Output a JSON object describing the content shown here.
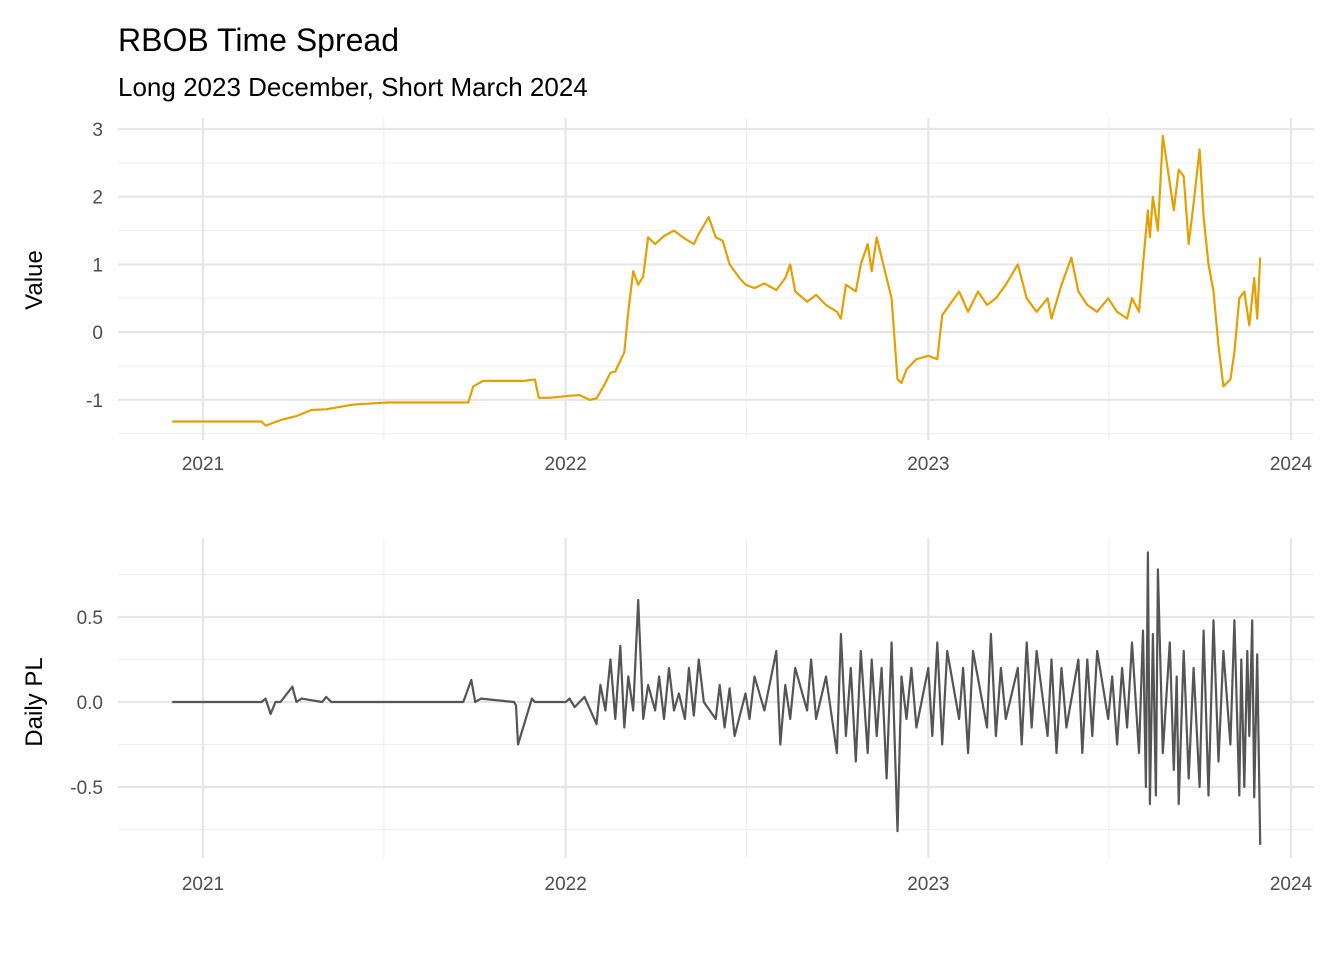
{
  "chart_data": [
    {
      "type": "line",
      "title": "RBOB Time Spread",
      "subtitle": "Long 2023 December, Short March 2024",
      "xlabel": "",
      "ylabel": "Value",
      "x_ticks": [
        "2021",
        "2022",
        "2023",
        "2024"
      ],
      "y_ticks": [
        "-1",
        "0",
        "1",
        "2",
        "3"
      ],
      "ylim": [
        -1.5,
        3.0
      ],
      "grid": true,
      "color": "#E69F00",
      "series": [
        {
          "x": [
            "2020-12-01",
            "2021-03-01",
            "2021-03-05",
            "2021-03-20",
            "2021-04-05",
            "2021-04-20",
            "2021-05-05",
            "2021-06-01",
            "2021-07-05",
            "2021-09-25",
            "2021-09-30",
            "2021-10-10",
            "2021-11-20",
            "2021-12-01",
            "2021-12-05",
            "2021-12-15",
            "2022-01-05",
            "2022-01-15",
            "2022-01-25",
            "2022-02-01",
            "2022-02-10",
            "2022-02-15",
            "2022-02-20",
            "2022-03-01",
            "2022-03-05",
            "2022-03-10",
            "2022-03-15",
            "2022-03-20",
            "2022-03-25",
            "2022-04-01",
            "2022-04-10",
            "2022-04-20",
            "2022-05-01",
            "2022-05-10",
            "2022-05-15",
            "2022-05-25",
            "2022-06-01",
            "2022-06-08",
            "2022-06-15",
            "2022-06-25",
            "2022-07-01",
            "2022-07-10",
            "2022-07-20",
            "2022-08-01",
            "2022-08-10",
            "2022-08-15",
            "2022-08-20",
            "2022-09-01",
            "2022-09-10",
            "2022-09-20",
            "2022-10-01",
            "2022-10-05",
            "2022-10-10",
            "2022-10-20",
            "2022-10-25",
            "2022-11-01",
            "2022-11-05",
            "2022-11-10",
            "2022-11-20",
            "2022-11-25",
            "2022-12-01",
            "2022-12-05",
            "2022-12-10",
            "2022-12-20",
            "2023-01-01",
            "2023-01-10",
            "2023-01-15",
            "2023-02-01",
            "2023-02-10",
            "2023-02-20",
            "2023-03-01",
            "2023-03-10",
            "2023-03-20",
            "2023-04-01",
            "2023-04-10",
            "2023-04-20",
            "2023-05-01",
            "2023-05-05",
            "2023-05-15",
            "2023-05-25",
            "2023-06-01",
            "2023-06-10",
            "2023-06-20",
            "2023-07-01",
            "2023-07-10",
            "2023-07-20",
            "2023-07-25",
            "2023-08-01",
            "2023-08-05",
            "2023-08-10",
            "2023-08-12",
            "2023-08-15",
            "2023-08-20",
            "2023-08-25",
            "2023-09-01",
            "2023-09-05",
            "2023-09-10",
            "2023-09-15",
            "2023-09-20",
            "2023-09-25",
            "2023-10-01",
            "2023-10-05",
            "2023-10-10",
            "2023-10-15",
            "2023-10-20",
            "2023-10-25",
            "2023-11-01",
            "2023-11-05",
            "2023-11-10",
            "2023-11-15",
            "2023-11-20",
            "2023-11-25",
            "2023-11-28",
            "2023-12-01"
          ],
          "y": [
            -1.32,
            -1.32,
            -1.38,
            -1.3,
            -1.24,
            -1.15,
            -1.14,
            -1.07,
            -1.04,
            -1.04,
            -0.8,
            -0.72,
            -0.72,
            -0.7,
            -0.97,
            -0.97,
            -0.94,
            -0.93,
            -1.0,
            -0.98,
            -0.75,
            -0.6,
            -0.58,
            -0.3,
            0.3,
            0.9,
            0.7,
            0.82,
            1.4,
            1.3,
            1.42,
            1.5,
            1.38,
            1.3,
            1.45,
            1.7,
            1.4,
            1.35,
            1.0,
            0.8,
            0.7,
            0.65,
            0.72,
            0.62,
            0.8,
            1.0,
            0.6,
            0.45,
            0.55,
            0.4,
            0.3,
            0.2,
            0.7,
            0.6,
            1.0,
            1.3,
            0.9,
            1.4,
            0.8,
            0.5,
            -0.7,
            -0.75,
            -0.55,
            -0.4,
            -0.35,
            -0.4,
            0.25,
            0.6,
            0.3,
            0.6,
            0.4,
            0.5,
            0.7,
            1.0,
            0.5,
            0.3,
            0.5,
            0.2,
            0.7,
            1.1,
            0.6,
            0.4,
            0.3,
            0.5,
            0.3,
            0.2,
            0.5,
            0.3,
            1.0,
            1.8,
            1.4,
            2.0,
            1.5,
            2.9,
            2.2,
            1.8,
            2.4,
            2.3,
            1.3,
            1.9,
            2.7,
            1.7,
            1.0,
            0.6,
            -0.2,
            -0.8,
            -0.7,
            -0.3,
            0.5,
            0.6,
            0.1,
            0.8,
            0.2,
            1.1
          ]
        }
      ]
    },
    {
      "type": "line",
      "title": "",
      "xlabel": "",
      "ylabel": "Daily PL",
      "x_ticks": [
        "2021",
        "2022",
        "2023",
        "2024"
      ],
      "y_ticks": [
        "-0.5",
        "0.0",
        "0.5"
      ],
      "ylim": [
        -0.8,
        0.9
      ],
      "grid": true,
      "color": "#555555",
      "series": [
        {
          "x": [
            "2020-12-01",
            "2021-03-01",
            "2021-03-05",
            "2021-03-10",
            "2021-03-15",
            "2021-03-20",
            "2021-04-01",
            "2021-04-05",
            "2021-04-10",
            "2021-05-01",
            "2021-05-05",
            "2021-05-10",
            "2021-06-01",
            "2021-09-20",
            "2021-09-28",
            "2021-10-02",
            "2021-10-08",
            "2021-11-10",
            "2021-11-12",
            "2021-11-14",
            "2021-11-28",
            "2021-12-01",
            "2021-12-05",
            "2022-01-01",
            "2022-01-05",
            "2022-01-10",
            "2022-01-15",
            "2022-01-20",
            "2022-02-01",
            "2022-02-05",
            "2022-02-10",
            "2022-02-15",
            "2022-02-20",
            "2022-02-25",
            "2022-03-01",
            "2022-03-05",
            "2022-03-10",
            "2022-03-15",
            "2022-03-20",
            "2022-03-25",
            "2022-04-01",
            "2022-04-05",
            "2022-04-10",
            "2022-04-15",
            "2022-04-20",
            "2022-04-25",
            "2022-05-01",
            "2022-05-05",
            "2022-05-10",
            "2022-05-15",
            "2022-05-20",
            "2022-06-01",
            "2022-06-05",
            "2022-06-10",
            "2022-06-15",
            "2022-06-20",
            "2022-07-01",
            "2022-07-05",
            "2022-07-10",
            "2022-07-20",
            "2022-08-01",
            "2022-08-05",
            "2022-08-10",
            "2022-08-15",
            "2022-08-20",
            "2022-09-01",
            "2022-09-05",
            "2022-09-10",
            "2022-09-20",
            "2022-10-01",
            "2022-10-05",
            "2022-10-10",
            "2022-10-15",
            "2022-10-20",
            "2022-10-25",
            "2022-11-01",
            "2022-11-05",
            "2022-11-10",
            "2022-11-15",
            "2022-11-20",
            "2022-11-25",
            "2022-12-01",
            "2022-12-05",
            "2022-12-10",
            "2022-12-15",
            "2022-12-20",
            "2023-01-01",
            "2023-01-05",
            "2023-01-10",
            "2023-01-15",
            "2023-01-20",
            "2023-02-01",
            "2023-02-05",
            "2023-02-10",
            "2023-02-15",
            "2023-03-01",
            "2023-03-05",
            "2023-03-10",
            "2023-03-15",
            "2023-03-20",
            "2023-04-01",
            "2023-04-05",
            "2023-04-10",
            "2023-04-15",
            "2023-04-20",
            "2023-05-01",
            "2023-05-05",
            "2023-05-10",
            "2023-05-15",
            "2023-05-20",
            "2023-06-01",
            "2023-06-05",
            "2023-06-10",
            "2023-06-15",
            "2023-06-20",
            "2023-07-01",
            "2023-07-05",
            "2023-07-10",
            "2023-07-15",
            "2023-07-20",
            "2023-07-25",
            "2023-08-01",
            "2023-08-05",
            "2023-08-08",
            "2023-08-10",
            "2023-08-12",
            "2023-08-15",
            "2023-08-18",
            "2023-08-20",
            "2023-08-25",
            "2023-09-01",
            "2023-09-05",
            "2023-09-08",
            "2023-09-10",
            "2023-09-15",
            "2023-09-20",
            "2023-09-25",
            "2023-10-01",
            "2023-10-05",
            "2023-10-10",
            "2023-10-15",
            "2023-10-20",
            "2023-10-25",
            "2023-11-01",
            "2023-11-05",
            "2023-11-10",
            "2023-11-12",
            "2023-11-15",
            "2023-11-18",
            "2023-11-20",
            "2023-11-23",
            "2023-11-25",
            "2023-11-28",
            "2023-12-01"
          ],
          "y": [
            0.0,
            0.0,
            0.02,
            -0.07,
            0.0,
            0.0,
            0.09,
            0.0,
            0.02,
            0.0,
            0.03,
            0.0,
            0.0,
            0.0,
            0.13,
            0.0,
            0.02,
            0.0,
            -0.02,
            -0.25,
            0.02,
            0.0,
            0.0,
            0.0,
            0.02,
            -0.03,
            0.0,
            0.03,
            -0.13,
            0.1,
            -0.05,
            0.25,
            -0.1,
            0.33,
            -0.15,
            0.15,
            -0.05,
            0.6,
            -0.1,
            0.1,
            -0.05,
            0.15,
            -0.1,
            0.2,
            -0.05,
            0.05,
            -0.1,
            0.2,
            -0.08,
            0.25,
            0.0,
            -0.1,
            0.1,
            -0.15,
            0.08,
            -0.2,
            0.05,
            -0.1,
            0.15,
            -0.05,
            0.3,
            -0.25,
            0.1,
            -0.1,
            0.2,
            -0.05,
            0.25,
            -0.1,
            0.15,
            -0.3,
            0.4,
            -0.2,
            0.2,
            -0.35,
            0.3,
            -0.3,
            0.25,
            -0.2,
            0.2,
            -0.45,
            0.35,
            -0.76,
            0.15,
            -0.1,
            0.2,
            -0.15,
            0.2,
            -0.2,
            0.35,
            -0.25,
            0.3,
            -0.1,
            0.2,
            -0.3,
            0.3,
            -0.15,
            0.4,
            -0.2,
            0.2,
            -0.1,
            0.2,
            -0.25,
            0.35,
            -0.15,
            0.3,
            -0.2,
            0.25,
            -0.3,
            0.2,
            -0.15,
            0.25,
            -0.3,
            0.25,
            -0.2,
            0.3,
            -0.1,
            0.15,
            -0.25,
            0.2,
            -0.15,
            0.35,
            -0.3,
            0.42,
            -0.5,
            0.88,
            -0.6,
            0.4,
            -0.55,
            0.78,
            -0.3,
            0.35,
            -0.4,
            0.15,
            -0.6,
            0.3,
            -0.45,
            0.2,
            -0.5,
            0.42,
            -0.55,
            0.48,
            -0.35,
            0.3,
            -0.25,
            0.48,
            -0.55,
            0.25,
            -0.5,
            0.3,
            -0.2,
            0.48,
            -0.56,
            0.28,
            -0.84
          ]
        }
      ]
    }
  ]
}
